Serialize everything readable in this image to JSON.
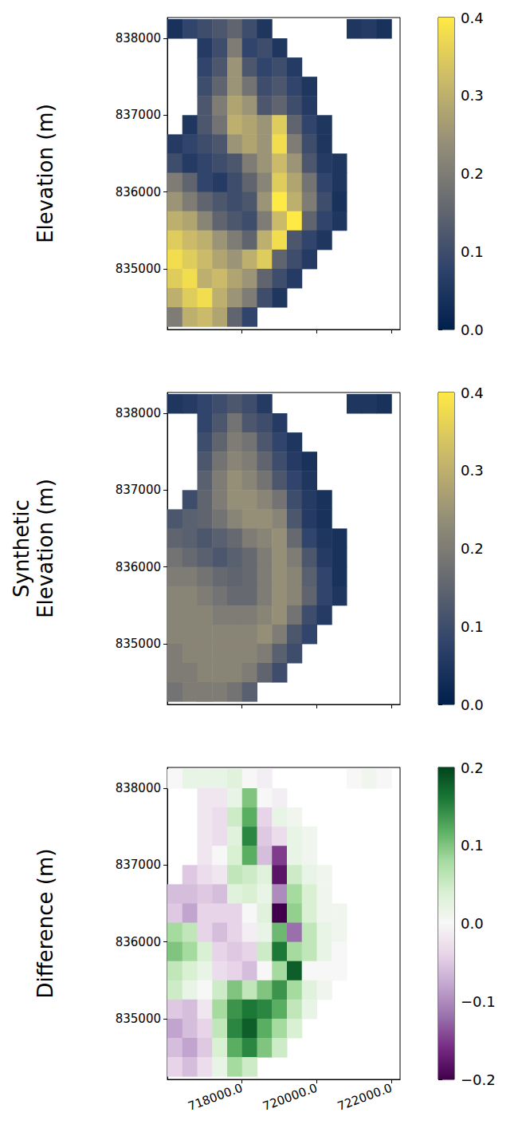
{
  "chart_data": [
    {
      "type": "heatmap",
      "y_label": "Elevation (m)",
      "tick_labels": "y",
      "xlim": [
        716000,
        722230
      ],
      "ylim": [
        834210,
        838270
      ],
      "xticks": [
        {
          "value": 718000,
          "label": "718000.0"
        },
        {
          "value": 720000,
          "label": "720000.0"
        },
        {
          "value": 722000,
          "label": "722000.0"
        }
      ],
      "yticks": [
        835000,
        836000,
        837000,
        838000
      ],
      "colorbar": {
        "range": [
          0,
          0.4
        ],
        "ticks": [
          {
            "value": 0,
            "label": "0.0"
          },
          {
            "value": 0.1,
            "label": "0.1"
          },
          {
            "value": 0.2,
            "label": "0.2"
          },
          {
            "value": 0.3,
            "label": "0.3"
          },
          {
            "value": 0.4,
            "label": "0.4"
          }
        ]
      },
      "x": [
        716200,
        716600,
        717000,
        717400,
        717800,
        718200,
        718600,
        719000,
        719400,
        719800,
        720200,
        720600,
        721000,
        721400,
        721800
      ],
      "y": [
        838125,
        837875,
        837625,
        837375,
        837125,
        836875,
        836625,
        836375,
        836125,
        835875,
        835625,
        835375,
        835125,
        834875,
        834625,
        834375
      ],
      "values": [
        [
          0.04,
          0.08,
          0.1,
          0.12,
          0.15,
          0.1,
          0.05,
          null,
          null,
          null,
          null,
          null,
          0.05,
          0.06,
          0.04
        ],
        [
          null,
          null,
          0.06,
          0.1,
          0.2,
          0.08,
          0.1,
          0.05,
          null,
          null,
          null,
          null,
          null,
          null,
          null
        ],
        [
          null,
          null,
          0.08,
          0.12,
          0.25,
          0.12,
          0.08,
          0.1,
          0.06,
          null,
          null,
          null,
          null,
          null,
          null
        ],
        [
          null,
          null,
          0.1,
          0.15,
          0.25,
          0.18,
          0.1,
          0.12,
          0.08,
          0.05,
          null,
          null,
          null,
          null,
          null
        ],
        [
          null,
          null,
          0.12,
          0.2,
          0.28,
          0.25,
          0.12,
          0.15,
          0.1,
          0.06,
          null,
          null,
          null,
          null,
          null
        ],
        [
          null,
          0.05,
          0.12,
          0.18,
          0.3,
          0.28,
          0.25,
          0.35,
          0.15,
          0.08,
          0.05,
          null,
          null,
          null,
          null
        ],
        [
          0.06,
          0.08,
          0.1,
          0.12,
          0.25,
          0.28,
          0.25,
          0.38,
          0.2,
          0.1,
          0.05,
          null,
          null,
          null,
          null
        ],
        [
          0.1,
          0.06,
          0.08,
          0.1,
          0.12,
          0.2,
          0.25,
          0.32,
          0.25,
          0.12,
          0.06,
          0.05,
          null,
          null,
          null
        ],
        [
          0.2,
          0.15,
          0.08,
          0.06,
          0.1,
          0.15,
          0.22,
          0.35,
          0.28,
          0.18,
          0.08,
          0.05,
          null,
          null,
          null
        ],
        [
          0.25,
          0.2,
          0.15,
          0.12,
          0.1,
          0.12,
          0.25,
          0.4,
          0.3,
          0.2,
          0.1,
          0.04,
          null,
          null,
          null
        ],
        [
          0.3,
          0.28,
          0.22,
          0.15,
          0.12,
          0.1,
          0.2,
          0.32,
          0.4,
          0.15,
          0.08,
          0.05,
          null,
          null,
          null
        ],
        [
          0.35,
          0.32,
          0.3,
          0.25,
          0.2,
          0.15,
          0.3,
          0.38,
          0.12,
          0.08,
          0.05,
          null,
          null,
          null,
          null
        ],
        [
          0.38,
          0.35,
          0.32,
          0.28,
          0.25,
          0.3,
          0.35,
          0.15,
          0.1,
          0.06,
          null,
          null,
          null,
          null,
          null
        ],
        [
          0.35,
          0.38,
          0.3,
          0.32,
          0.28,
          0.25,
          0.15,
          0.1,
          0.06,
          null,
          null,
          null,
          null,
          null,
          null
        ],
        [
          0.3,
          0.35,
          0.38,
          0.3,
          0.25,
          0.2,
          0.1,
          0.05,
          null,
          null,
          null,
          null,
          null,
          null,
          null
        ],
        [
          0.2,
          0.3,
          0.32,
          0.28,
          0.15,
          0.08,
          null,
          null,
          null,
          null,
          null,
          null,
          null,
          null,
          null
        ]
      ]
    },
    {
      "type": "heatmap",
      "y_label": "Synthetic Elevation (m)",
      "tick_labels": "y",
      "xlim": [
        716000,
        722230
      ],
      "ylim": [
        834210,
        838270
      ],
      "xticks": [
        {
          "value": 718000,
          "label": "718000.0"
        },
        {
          "value": 720000,
          "label": "720000.0"
        },
        {
          "value": 722000,
          "label": "722000.0"
        }
      ],
      "yticks": [
        835000,
        836000,
        837000,
        838000
      ],
      "colorbar": {
        "range": [
          0,
          0.4
        ],
        "ticks": [
          {
            "value": 0,
            "label": "0.0"
          },
          {
            "value": 0.1,
            "label": "0.1"
          },
          {
            "value": 0.2,
            "label": "0.2"
          },
          {
            "value": 0.3,
            "label": "0.3"
          },
          {
            "value": 0.4,
            "label": "0.4"
          }
        ]
      },
      "x": [
        716200,
        716600,
        717000,
        717400,
        717800,
        718200,
        718600,
        719000,
        719400,
        719800,
        720200,
        720600,
        721000,
        721400,
        721800
      ],
      "y": [
        838125,
        837875,
        837625,
        837375,
        837125,
        836875,
        836625,
        836375,
        836125,
        835875,
        835625,
        835375,
        835125,
        834875,
        834625,
        834375
      ],
      "values": [
        [
          0.05,
          0.06,
          0.08,
          0.1,
          0.12,
          0.1,
          0.06,
          null,
          null,
          null,
          null,
          null,
          0.05,
          0.05,
          0.04
        ],
        [
          null,
          null,
          0.08,
          0.12,
          0.18,
          0.12,
          0.1,
          0.06,
          null,
          null,
          null,
          null,
          null,
          null,
          null
        ],
        [
          null,
          null,
          0.1,
          0.15,
          0.2,
          0.18,
          0.12,
          0.08,
          0.05,
          null,
          null,
          null,
          null,
          null,
          null
        ],
        [
          null,
          null,
          0.12,
          0.18,
          0.22,
          0.2,
          0.15,
          0.1,
          0.06,
          0.04,
          null,
          null,
          null,
          null,
          null
        ],
        [
          null,
          null,
          0.14,
          0.2,
          0.24,
          0.22,
          0.18,
          0.12,
          0.08,
          0.05,
          null,
          null,
          null,
          null,
          null
        ],
        [
          null,
          0.1,
          0.15,
          0.2,
          0.24,
          0.24,
          0.22,
          0.18,
          0.1,
          0.06,
          0.04,
          null,
          null,
          null,
          null
        ],
        [
          0.12,
          0.14,
          0.15,
          0.18,
          0.22,
          0.24,
          0.24,
          0.22,
          0.12,
          0.06,
          0.04,
          null,
          null,
          null,
          null
        ],
        [
          0.15,
          0.14,
          0.12,
          0.14,
          0.16,
          0.2,
          0.22,
          0.24,
          0.16,
          0.08,
          0.05,
          0.04,
          null,
          null,
          null
        ],
        [
          0.18,
          0.16,
          0.14,
          0.12,
          0.14,
          0.16,
          0.2,
          0.24,
          0.2,
          0.12,
          0.06,
          0.04,
          null,
          null,
          null
        ],
        [
          0.2,
          0.2,
          0.18,
          0.16,
          0.15,
          0.16,
          0.2,
          0.24,
          0.22,
          0.14,
          0.08,
          0.04,
          null,
          null,
          null
        ],
        [
          0.22,
          0.22,
          0.2,
          0.18,
          0.16,
          0.16,
          0.2,
          0.24,
          0.22,
          0.15,
          0.08,
          0.05,
          null,
          null,
          null
        ],
        [
          0.22,
          0.22,
          0.22,
          0.2,
          0.2,
          0.2,
          0.22,
          0.24,
          0.18,
          0.1,
          0.06,
          null,
          null,
          null,
          null
        ],
        [
          0.22,
          0.22,
          0.22,
          0.22,
          0.22,
          0.22,
          0.24,
          0.2,
          0.12,
          0.08,
          null,
          null,
          null,
          null,
          null
        ],
        [
          0.2,
          0.22,
          0.22,
          0.22,
          0.22,
          0.22,
          0.2,
          0.14,
          0.1,
          null,
          null,
          null,
          null,
          null,
          null
        ],
        [
          0.2,
          0.2,
          0.22,
          0.22,
          0.22,
          0.2,
          0.15,
          0.1,
          null,
          null,
          null,
          null,
          null,
          null,
          null
        ],
        [
          0.18,
          0.2,
          0.2,
          0.2,
          0.18,
          0.14,
          null,
          null,
          null,
          null,
          null,
          null,
          null,
          null,
          null
        ]
      ]
    },
    {
      "type": "heatmap",
      "y_label": "Difference (m)",
      "xlim": [
        716000,
        722230
      ],
      "ylim": [
        834210,
        838270
      ],
      "xticks": [
        {
          "value": 718000,
          "label": "718000.0"
        },
        {
          "value": 720000,
          "label": "720000.0"
        },
        {
          "value": 722000,
          "label": "722000.0"
        }
      ],
      "yticks": [
        835000,
        836000,
        837000,
        838000
      ],
      "colorbar": {
        "range": [
          -0.2,
          0.2
        ],
        "ticks": [
          {
            "value": -0.2,
            "label": "−0.2"
          },
          {
            "value": -0.1,
            "label": "−0.1"
          },
          {
            "value": 0,
            "label": "0.0"
          },
          {
            "value": 0.1,
            "label": "0.1"
          },
          {
            "value": 0.2,
            "label": "0.2"
          }
        ]
      },
      "x": [
        716200,
        716600,
        717000,
        717400,
        717800,
        718200,
        718600,
        719000,
        719400,
        719800,
        720200,
        720600,
        721000,
        721400,
        721800
      ],
      "y": [
        838125,
        837875,
        837625,
        837375,
        837125,
        836875,
        836625,
        836375,
        836125,
        835875,
        835625,
        835375,
        835125,
        834875,
        834625,
        834375
      ],
      "values": [
        [
          0.0,
          0.02,
          0.02,
          0.02,
          0.03,
          0.0,
          -0.01,
          null,
          null,
          null,
          null,
          null,
          0.0,
          0.01,
          0.0
        ],
        [
          null,
          null,
          -0.02,
          -0.02,
          0.02,
          0.1,
          0.0,
          -0.01,
          null,
          null,
          null,
          null,
          null,
          null,
          null
        ],
        [
          null,
          null,
          -0.02,
          -0.03,
          0.05,
          0.12,
          -0.04,
          0.02,
          0.01,
          null,
          null,
          null,
          null,
          null,
          null
        ],
        [
          null,
          null,
          -0.02,
          -0.03,
          0.03,
          0.15,
          -0.05,
          -0.03,
          0.02,
          0.01,
          null,
          null,
          null,
          null,
          null
        ],
        [
          null,
          null,
          -0.02,
          0.0,
          0.04,
          0.12,
          -0.06,
          -0.15,
          0.02,
          0.01,
          null,
          null,
          null,
          null,
          null
        ],
        [
          null,
          -0.05,
          -0.03,
          -0.02,
          0.06,
          0.05,
          0.03,
          -0.18,
          0.05,
          0.02,
          0.01,
          null,
          null,
          null,
          null
        ],
        [
          -0.06,
          -0.06,
          -0.05,
          -0.06,
          0.03,
          0.04,
          0.02,
          -0.1,
          0.08,
          0.04,
          0.01,
          null,
          null,
          null,
          null
        ],
        [
          -0.05,
          -0.08,
          -0.04,
          -0.04,
          -0.04,
          0.0,
          0.03,
          -0.2,
          0.09,
          0.04,
          0.01,
          0.01,
          null,
          null,
          null
        ],
        [
          0.08,
          0.06,
          -0.04,
          -0.06,
          -0.04,
          -0.01,
          0.02,
          0.11,
          -0.12,
          0.06,
          0.02,
          0.01,
          null,
          null,
          null
        ],
        [
          0.1,
          0.08,
          0.04,
          -0.04,
          -0.05,
          -0.04,
          0.05,
          0.16,
          0.08,
          0.06,
          0.02,
          0.0,
          null,
          null,
          null
        ],
        [
          0.06,
          0.04,
          0.02,
          -0.03,
          -0.04,
          -0.06,
          0.0,
          0.08,
          0.18,
          0.0,
          0.0,
          0.0,
          null,
          null,
          null
        ],
        [
          0.05,
          0.02,
          0.0,
          0.05,
          0.1,
          0.06,
          0.1,
          0.14,
          0.08,
          0.03,
          0.01,
          null,
          null,
          null,
          null
        ],
        [
          -0.05,
          -0.06,
          -0.02,
          0.08,
          0.14,
          0.16,
          0.15,
          0.12,
          0.06,
          0.02,
          null,
          null,
          null,
          null,
          null
        ],
        [
          -0.08,
          -0.06,
          -0.04,
          0.06,
          0.15,
          0.18,
          0.12,
          0.08,
          0.04,
          null,
          null,
          null,
          null,
          null,
          null
        ],
        [
          -0.06,
          -0.08,
          -0.05,
          0.04,
          0.12,
          0.15,
          0.1,
          0.05,
          null,
          null,
          null,
          null,
          null,
          null,
          null
        ],
        [
          -0.04,
          -0.06,
          -0.03,
          0.02,
          0.08,
          0.05,
          null,
          null,
          null,
          null,
          null,
          null,
          null,
          null,
          null
        ]
      ]
    }
  ]
}
